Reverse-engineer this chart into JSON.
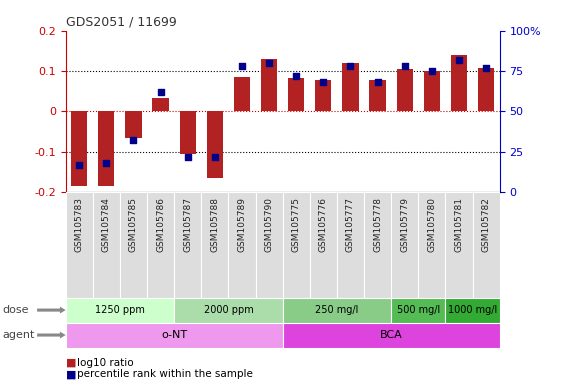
{
  "title": "GDS2051 / 11699",
  "samples": [
    "GSM105783",
    "GSM105784",
    "GSM105785",
    "GSM105786",
    "GSM105787",
    "GSM105788",
    "GSM105789",
    "GSM105790",
    "GSM105775",
    "GSM105776",
    "GSM105777",
    "GSM105778",
    "GSM105779",
    "GSM105780",
    "GSM105781",
    "GSM105782"
  ],
  "log10_ratio": [
    -0.185,
    -0.185,
    -0.065,
    0.032,
    -0.105,
    -0.165,
    0.085,
    0.13,
    0.082,
    0.078,
    0.12,
    0.078,
    0.105,
    0.1,
    0.14,
    0.107
  ],
  "percentile": [
    17,
    18,
    32,
    62,
    22,
    22,
    78,
    80,
    72,
    68,
    78,
    68,
    78,
    75,
    82,
    77
  ],
  "ylim": [
    -0.2,
    0.2
  ],
  "bar_color": "#b22222",
  "dot_color": "#00008b",
  "dose_groups": [
    {
      "label": "1250 ppm",
      "start": 0,
      "end": 4,
      "color": "#ccffcc"
    },
    {
      "label": "2000 ppm",
      "start": 4,
      "end": 8,
      "color": "#aaddaa"
    },
    {
      "label": "250 mg/l",
      "start": 8,
      "end": 12,
      "color": "#88cc88"
    },
    {
      "label": "500 mg/l",
      "start": 12,
      "end": 14,
      "color": "#55bb55"
    },
    {
      "label": "1000 mg/l",
      "start": 14,
      "end": 16,
      "color": "#33aa33"
    }
  ],
  "agent_groups": [
    {
      "label": "o-NT",
      "start": 0,
      "end": 8,
      "color": "#ee99ee"
    },
    {
      "label": "BCA",
      "start": 8,
      "end": 16,
      "color": "#dd44dd"
    }
  ],
  "dose_label": "dose",
  "agent_label": "agent",
  "legend_red": "log10 ratio",
  "legend_blue": "percentile rank within the sample",
  "left_axis_color": "#cc0000",
  "right_axis_color": "#0000cc",
  "zero_line_color": "#cc0000",
  "grid_line_color": "#000000"
}
